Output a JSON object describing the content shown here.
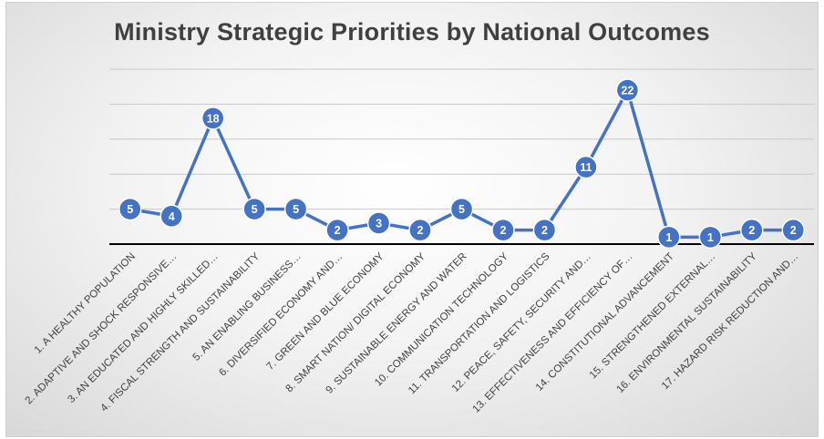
{
  "chart_data": {
    "type": "line",
    "title": "Ministry Strategic Priorities by National Outcomes",
    "xlabel": "",
    "ylabel": "",
    "ylim": [
      0,
      25
    ],
    "grid": true,
    "legend": "none",
    "categories": [
      "1. A HEALTHY POPULATION",
      "2. ADAPTIVE AND SHOCK RESPONSIVE…",
      "3. AN EDUCATED AND HIGHLY SKILLED…",
      "4. FISCAL STRENGTH AND SUSTAINABILITY",
      "5. AN ENABLING BUSINESS…",
      "6. DIVERSIFIED ECONOMY AND…",
      "7. GREEN AND BLUE ECONOMY",
      "8. SMART NATION/ DIGITAL ECONOMY",
      "9. SUSTAINABLE ENERGY AND WATER",
      "10. COMMUNICATION TECHNOLOGY",
      "11. TRANSPORTATION AND LOGISTICS",
      "12. PEACE, SAFETY, SECURITY AND…",
      "13. EFFECTIVENESS AND EFFICIENCY OF…",
      "14. CONSTITUTIONAL ADVANCEMENT",
      "15. STRENGTHENED EXTERNAL…",
      "16. ENVIRONMENTAL SUSTAINABILITY",
      "17. HAZARD RISK REDUCTION AND…"
    ],
    "series": [
      {
        "values": [
          5,
          4,
          18,
          5,
          5,
          2,
          3,
          2,
          5,
          2,
          2,
          11,
          22,
          1,
          1,
          2,
          2
        ],
        "color": "#4472c4"
      }
    ]
  }
}
